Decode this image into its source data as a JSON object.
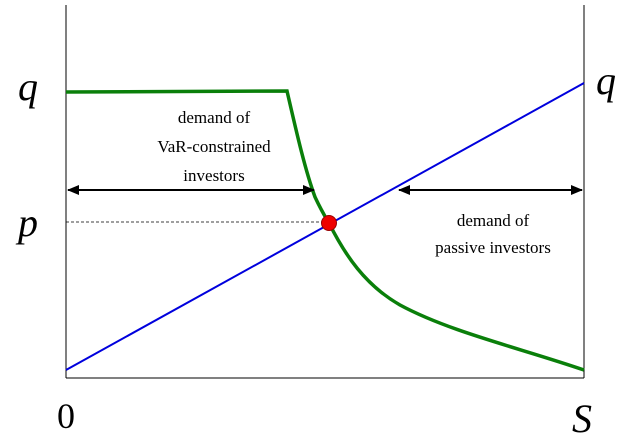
{
  "axis_labels": {
    "price_left": "q",
    "price_right": "q",
    "equilibrium_price": "p",
    "origin": "0",
    "supply": "S"
  },
  "annotations": {
    "var_demand": [
      "demand of",
      "VaR-constrained",
      "investors"
    ],
    "passive_demand": [
      "demand of",
      "passive investors"
    ]
  }
}
